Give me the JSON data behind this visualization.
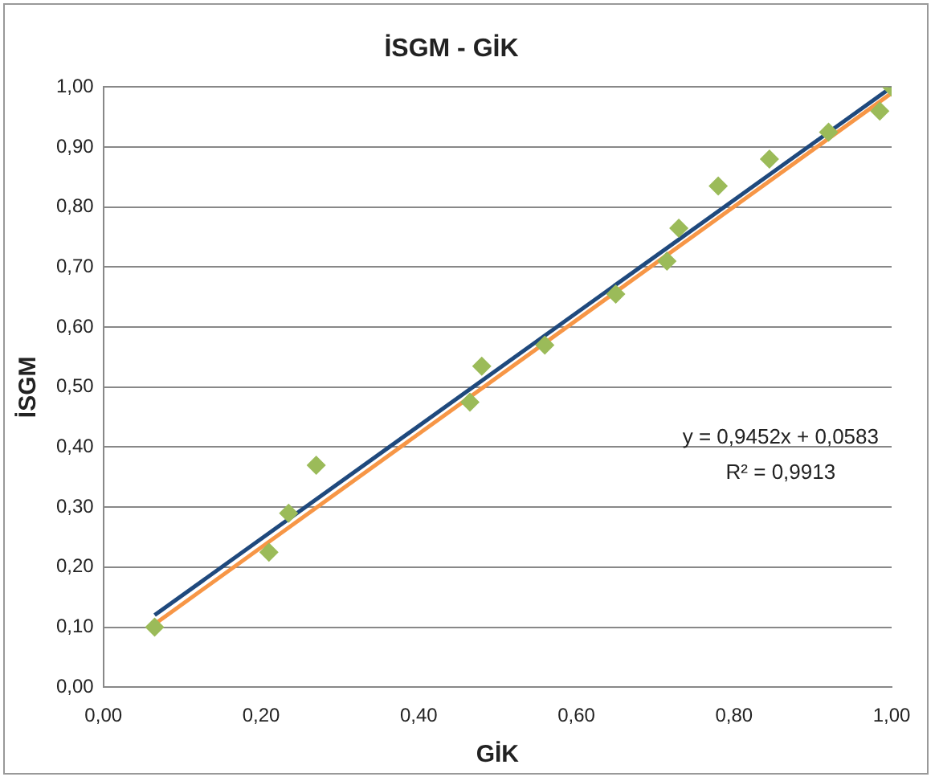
{
  "chart_data": {
    "type": "scatter",
    "title": "İSGM - GİK",
    "xlabel": "GİK",
    "ylabel": "İSGM",
    "annotations": [
      "y = 0,9452x + 0,0583",
      "R² = 0,9913"
    ],
    "series": [
      {
        "color": "#9bbb59",
        "marker": "diamond",
        "x": [
          0.065,
          0.21,
          0.235,
          0.27,
          0.465,
          0.48,
          0.56,
          0.65,
          0.715,
          0.73,
          0.78,
          0.845,
          0.92,
          0.985,
          1.0
        ],
        "values": [
          0.1,
          0.225,
          0.29,
          0.37,
          0.475,
          0.535,
          0.57,
          0.655,
          0.71,
          0.765,
          0.835,
          0.88,
          0.925,
          0.96,
          1.0
        ]
      },
      {
        "type": "line",
        "color": "#1f497d",
        "marker": "none",
        "x": [
          0.065,
          1.0
        ],
        "values": [
          0.12,
          1.0
        ]
      },
      {
        "type": "line",
        "color": "#f79646",
        "marker": "none",
        "x": [
          0.065,
          1.0
        ],
        "values": [
          0.105,
          0.99
        ]
      }
    ],
    "xlim": [
      0,
      1
    ],
    "ylim": [
      0,
      1
    ],
    "xticks": [
      {
        "value": 0,
        "label": "0,00"
      },
      {
        "value": 0.2,
        "label": "0,20"
      },
      {
        "value": 0.4,
        "label": "0,40"
      },
      {
        "value": 0.6,
        "label": "0,60"
      },
      {
        "value": 0.8,
        "label": "0,80"
      },
      {
        "value": 1,
        "label": "1,00"
      }
    ],
    "yticks": [
      {
        "value": 0,
        "label": "0,00"
      },
      {
        "value": 0.1,
        "label": "0,10"
      },
      {
        "value": 0.2,
        "label": "0,20"
      },
      {
        "value": 0.3,
        "label": "0,30"
      },
      {
        "value": 0.4,
        "label": "0,40"
      },
      {
        "value": 0.5,
        "label": "0,50"
      },
      {
        "value": 0.6,
        "label": "0,60"
      },
      {
        "value": 0.7,
        "label": "0,70"
      },
      {
        "value": 0.8,
        "label": "0,80"
      },
      {
        "value": 0.9,
        "label": "0,90"
      },
      {
        "value": 1,
        "label": "1,00"
      }
    ],
    "grid": "y",
    "legend": false
  }
}
